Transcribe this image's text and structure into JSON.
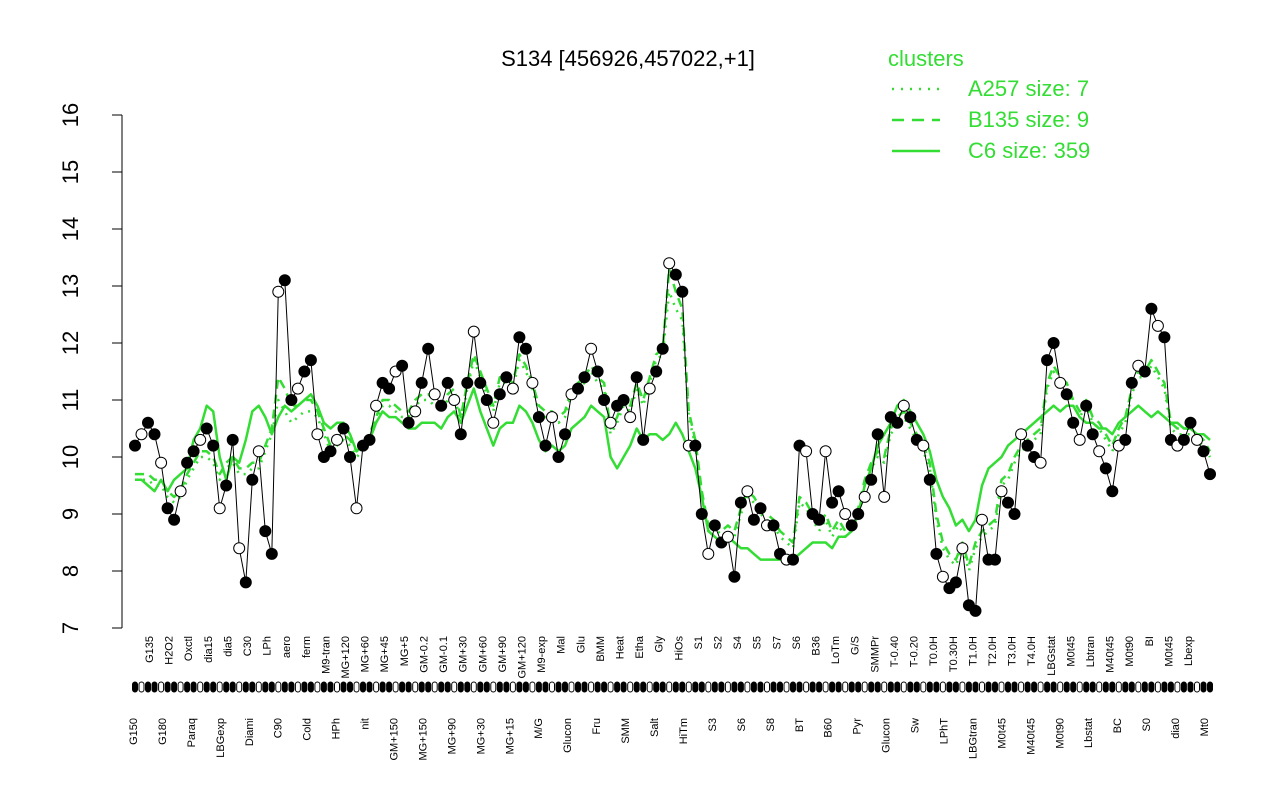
{
  "chart_data": {
    "type": "line",
    "title": "S134 [456926,457022,+1]",
    "xlabel": "",
    "ylabel": "",
    "ylim": [
      7,
      16
    ],
    "yticks": [
      7,
      8,
      9,
      10,
      11,
      12,
      13,
      14,
      15,
      16
    ],
    "legend": {
      "title": "clusters",
      "position": "top-right",
      "entries": [
        {
          "label": "A257 size: 7",
          "style": "dotted"
        },
        {
          "label": "B135 size: 9",
          "style": "dashed"
        },
        {
          "label": "C6 size: 359",
          "style": "solid"
        }
      ]
    },
    "colors": {
      "cluster_lines": "#33dd33",
      "points_dark": "#000000",
      "points_light": "#ffffff"
    },
    "x_tick_labels_upper": [
      "G135",
      "H2O2",
      "Oxctl",
      "dia15",
      "dia5",
      "C30",
      "LPh",
      "aero",
      "ferm",
      "M9-tran",
      "MG+120",
      "MG+60",
      "MG+45",
      "MG+5",
      "GM-0.2",
      "GM-0.1",
      "GM+30",
      "GM+60",
      "GM+90",
      "GM+120",
      "M9-exp",
      "Mal",
      "Glu",
      "BMM",
      "Heat",
      "Etha",
      "Gly",
      "HiOs",
      "S1",
      "S2",
      "S4",
      "S5",
      "S7",
      "S6",
      "B36",
      "LoTm",
      "G/S",
      "SMMPr",
      "T-0.40",
      "T-0.20",
      "T0.0H",
      "T0.30H",
      "T1.0H",
      "T2.0H",
      "T3.0H",
      "T4.0H",
      "LBGstat",
      "M0t45",
      "Lbtran",
      "M40t45",
      "M0t90",
      "BI",
      "M0t45",
      "Lbexp"
    ],
    "x_tick_labels_lower": [
      "G150",
      "G180",
      "Paraq",
      "LBGexp",
      "Diami",
      "C90",
      "Cold",
      "HPh",
      "nit",
      "GM+150",
      "MG+150",
      "MG+90",
      "MG+30",
      "MG+15",
      "M/G",
      "Glucon",
      "Fru",
      "SMM",
      "Salt",
      "HiTm",
      "S3",
      "S6",
      "S8",
      "BT",
      "B60",
      "Pyr",
      "Glucon",
      "Sw",
      "LPhT",
      "LBGtran",
      "M0t45",
      "M40t45",
      "M0t90",
      "Lbstat",
      "BC",
      "S0",
      "dia0",
      "Mt0"
    ],
    "series": [
      {
        "name": "",
        "values": [
          10.2,
          10.4,
          10.6,
          10.4,
          9.9,
          9.1,
          8.9,
          9.4,
          9.9,
          10.1,
          10.3,
          10.5,
          10.2,
          9.1,
          9.5,
          10.3,
          8.4,
          7.8,
          9.6,
          10.1,
          8.7,
          8.3,
          12.9,
          13.1,
          11.0,
          11.2,
          11.5,
          11.7,
          10.4,
          10.0,
          10.1,
          10.3,
          10.5,
          10.0,
          9.1,
          10.2,
          10.3,
          10.9,
          11.3,
          11.2,
          11.5,
          11.6,
          10.6,
          10.8,
          11.3,
          11.9,
          11.1,
          10.9,
          11.3,
          11.0,
          10.4,
          11.3,
          12.2,
          11.3,
          11.0,
          10.6,
          11.1,
          11.4,
          11.2,
          12.1,
          11.9,
          11.3,
          10.7,
          10.2,
          10.7,
          10.0,
          10.4,
          11.1,
          11.2,
          11.4,
          11.9,
          11.5,
          11.0,
          10.6,
          10.9,
          11.0,
          10.7,
          11.4,
          10.3,
          11.2,
          11.5,
          11.9,
          13.4,
          13.2,
          12.9,
          10.2,
          10.2,
          9.0,
          8.3,
          8.8,
          8.5,
          8.6,
          7.9,
          9.2,
          9.4,
          8.9,
          9.1,
          8.8,
          8.8,
          8.3,
          8.2,
          8.2,
          10.2,
          10.1,
          9.0,
          8.9,
          10.1,
          9.2,
          9.4,
          9.0,
          8.8,
          9.0,
          9.3,
          9.6,
          10.4,
          9.3,
          10.7,
          10.6,
          10.9,
          10.7,
          10.3,
          10.2,
          9.6,
          8.3,
          7.9,
          7.7,
          7.8,
          8.4,
          7.4,
          7.3,
          8.9,
          8.2,
          8.2,
          9.4,
          9.2,
          9.0,
          10.4,
          10.2,
          10.0,
          9.9,
          11.7,
          12.0,
          11.3,
          11.1,
          10.6,
          10.3,
          10.9,
          10.4,
          10.1,
          9.8,
          9.4,
          10.2,
          10.3,
          11.3,
          11.6,
          11.5,
          12.6,
          12.3,
          12.1,
          10.3,
          10.2,
          10.3,
          10.6,
          10.3,
          10.1,
          9.7
        ]
      },
      {
        "name": "",
        "values": [
          9.6,
          9.6,
          9.6,
          9.5,
          9.5,
          9.3,
          9.2,
          9.3,
          9.6,
          9.8,
          10.0,
          10.0,
          9.9,
          9.6,
          9.8,
          9.9,
          9.7,
          9.7,
          9.8,
          9.8,
          10.1,
          10.4,
          11.0,
          10.8,
          10.6,
          10.7,
          10.8,
          10.8,
          10.7,
          10.4,
          10.1,
          10.2,
          10.3,
          10.2,
          10.0,
          10.1,
          10.3,
          10.6,
          10.9,
          10.9,
          10.8,
          10.7,
          10.7,
          10.9,
          11.0,
          11.0,
          10.9,
          10.8,
          11.0,
          11.1,
          10.6,
          11.2,
          11.7,
          11.4,
          11.1,
          10.8,
          11.3,
          11.3,
          11.2,
          11.7,
          11.5,
          11.2,
          10.8,
          10.7,
          10.7,
          10.6,
          10.7,
          11.1,
          11.2,
          11.3,
          11.5,
          11.3,
          11.2,
          10.4,
          10.6,
          10.9,
          10.8,
          11.2,
          10.9,
          11.3,
          11.7,
          11.8,
          12.9,
          12.6,
          12.4,
          10.7,
          10.2,
          9.3,
          8.7,
          8.8,
          8.6,
          8.7,
          8.6,
          9.0,
          9.3,
          9.2,
          9.0,
          8.9,
          8.8,
          8.6,
          8.5,
          8.4,
          9.2,
          9.1,
          8.9,
          8.7,
          8.9,
          8.6,
          8.8,
          8.6,
          8.7,
          9.0,
          9.5,
          9.8,
          10.0,
          9.9,
          10.4,
          10.6,
          10.7,
          10.5,
          10.3,
          10.1,
          9.8,
          8.9,
          8.4,
          8.2,
          8.1,
          8.4,
          8.0,
          8.4,
          8.6,
          8.7,
          8.8,
          9.5,
          9.6,
          9.9,
          10.1,
          10.2,
          10.3,
          10.4,
          11.2,
          11.5,
          11.3,
          11.2,
          10.9,
          10.7,
          10.9,
          10.6,
          10.5,
          10.3,
          10.1,
          10.4,
          10.6,
          11.1,
          11.4,
          11.4,
          11.6,
          11.4,
          11.2,
          10.5,
          10.4,
          10.4,
          10.4,
          10.3,
          10.2,
          10.0
        ]
      },
      {
        "name": "",
        "values": [
          9.7,
          9.7,
          9.7,
          9.6,
          9.6,
          9.4,
          9.3,
          9.4,
          9.7,
          9.9,
          10.1,
          10.1,
          10.0,
          9.7,
          9.9,
          10.0,
          9.8,
          9.8,
          9.9,
          9.9,
          10.2,
          10.5,
          11.4,
          11.2,
          10.9,
          10.9,
          11.0,
          11.0,
          10.8,
          10.5,
          10.2,
          10.3,
          10.4,
          10.3,
          10.1,
          10.2,
          10.4,
          10.7,
          11.0,
          11.0,
          10.9,
          10.8,
          10.8,
          11.0,
          11.1,
          11.1,
          11.0,
          10.9,
          11.1,
          11.2,
          10.7,
          11.3,
          11.8,
          11.5,
          11.2,
          10.9,
          11.4,
          11.4,
          11.3,
          11.8,
          11.6,
          11.3,
          10.9,
          10.8,
          10.8,
          10.7,
          10.8,
          11.2,
          11.3,
          11.4,
          11.6,
          11.4,
          11.3,
          10.5,
          10.7,
          11.0,
          10.9,
          11.3,
          11.0,
          11.4,
          11.8,
          11.9,
          13.3,
          12.9,
          12.6,
          10.8,
          10.3,
          9.4,
          8.8,
          8.9,
          8.7,
          8.8,
          8.7,
          9.1,
          9.4,
          9.3,
          9.1,
          9.0,
          8.9,
          8.7,
          8.6,
          8.5,
          9.3,
          9.2,
          9.0,
          8.8,
          9.0,
          8.7,
          8.9,
          8.7,
          8.8,
          9.1,
          9.6,
          9.9,
          10.1,
          10.0,
          10.5,
          10.7,
          10.8,
          10.6,
          10.4,
          10.2,
          9.9,
          9.0,
          8.5,
          8.3,
          8.2,
          8.5,
          8.1,
          8.5,
          8.7,
          8.8,
          8.9,
          9.6,
          9.7,
          10.0,
          10.2,
          10.3,
          10.4,
          10.5,
          11.3,
          11.6,
          11.4,
          11.3,
          11.0,
          10.8,
          11.0,
          10.7,
          10.6,
          10.4,
          10.2,
          10.5,
          10.7,
          11.2,
          11.5,
          11.5,
          11.7,
          11.5,
          11.3,
          10.6,
          10.5,
          10.5,
          10.5,
          10.4,
          10.3,
          10.1
        ]
      },
      {
        "name": "",
        "values": [
          9.6,
          9.6,
          9.5,
          9.4,
          9.6,
          9.4,
          9.6,
          9.7,
          9.8,
          10.3,
          10.5,
          10.9,
          10.8,
          10.0,
          9.6,
          10.0,
          9.9,
          10.3,
          10.8,
          10.9,
          10.7,
          10.4,
          10.7,
          10.9,
          10.8,
          10.9,
          11.0,
          11.1,
          10.9,
          10.6,
          10.5,
          10.6,
          10.6,
          10.4,
          10.1,
          10.2,
          10.3,
          10.6,
          10.8,
          10.7,
          10.7,
          10.6,
          10.5,
          10.5,
          10.6,
          10.6,
          10.6,
          10.5,
          10.7,
          10.8,
          10.6,
          10.9,
          11.2,
          10.8,
          10.5,
          10.2,
          10.5,
          10.6,
          10.6,
          10.9,
          10.8,
          10.6,
          10.3,
          10.1,
          10.2,
          10.1,
          10.2,
          10.5,
          10.6,
          10.7,
          10.9,
          10.8,
          10.7,
          10.0,
          9.8,
          10.0,
          10.2,
          10.5,
          10.3,
          10.4,
          10.4,
          10.3,
          10.4,
          10.6,
          10.4,
          10.1,
          9.8,
          9.3,
          8.7,
          8.6,
          8.5,
          8.6,
          8.5,
          8.4,
          8.4,
          8.3,
          8.2,
          8.2,
          8.2,
          8.2,
          8.2,
          8.2,
          8.3,
          8.4,
          8.5,
          8.5,
          8.5,
          8.4,
          8.6,
          8.6,
          8.7,
          9.0,
          9.5,
          9.8,
          10.2,
          10.4,
          10.6,
          10.9,
          11.0,
          10.8,
          10.6,
          10.4,
          10.1,
          9.6,
          9.3,
          9.1,
          8.8,
          8.9,
          8.7,
          8.9,
          9.5,
          9.8,
          9.9,
          10.0,
          10.2,
          10.3,
          10.4,
          10.5,
          10.6,
          10.7,
          10.8,
          10.9,
          10.8,
          10.9,
          10.9,
          10.7,
          10.6,
          10.6,
          10.5,
          10.5,
          10.4,
          10.6,
          10.7,
          10.8,
          10.9,
          10.8,
          10.7,
          10.8,
          10.7,
          10.6,
          10.6,
          10.5,
          10.5,
          10.4,
          10.4,
          10.3
        ]
      }
    ]
  }
}
